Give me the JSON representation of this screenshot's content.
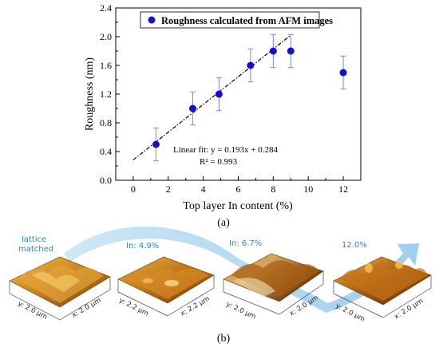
{
  "chart_data": {
    "type": "scatter",
    "xlabel": "Top layer In content (%)",
    "ylabel": "Roughness  (nm)",
    "xlim": [
      -1,
      13
    ],
    "ylim": [
      0.0,
      2.4
    ],
    "xticks": [
      0,
      2,
      4,
      6,
      8,
      10,
      12
    ],
    "yticks": [
      "0.0",
      "0.4",
      "0.8",
      "1.2",
      "1.6",
      "2.0",
      "2.4"
    ],
    "series": [
      {
        "name": "Roughness calculated from AFM images",
        "color": "#1010d0",
        "x": [
          1.3,
          3.4,
          4.9,
          6.7,
          8.0,
          9.0,
          12.0
        ],
        "y": [
          0.5,
          1.0,
          1.2,
          1.6,
          1.8,
          1.8,
          1.5
        ],
        "error": [
          0.23,
          0.23,
          0.23,
          0.23,
          0.23,
          0.23,
          0.23
        ]
      }
    ],
    "fit": {
      "slope": 0.193,
      "intercept": 0.284,
      "x_range": [
        0,
        9
      ]
    },
    "annotation": [
      "Linear fit: y = 0.193x + 0.284",
      "R² = 0.993"
    ],
    "legend_position": "top"
  },
  "caption_a": "(a)",
  "caption_b": "(b)",
  "afm_images": [
    {
      "label": [
        "lattice",
        "matched"
      ],
      "y_axis": "y: 2.0 µm",
      "x_axis": "x: 2.0 µm"
    },
    {
      "label": [
        "In: 4.9%"
      ],
      "y_axis": "y: 2.2 µm",
      "x_axis": "x: 2.2 µm"
    },
    {
      "label": [
        "In: 6.7%"
      ],
      "y_axis": "y: 2.0 µm",
      "x_axis": "x: 2.0 µm"
    },
    {
      "label": [
        "12.0%"
      ],
      "y_axis": "y: 2.0 µm",
      "x_axis": "x: 2.0 µm"
    }
  ]
}
